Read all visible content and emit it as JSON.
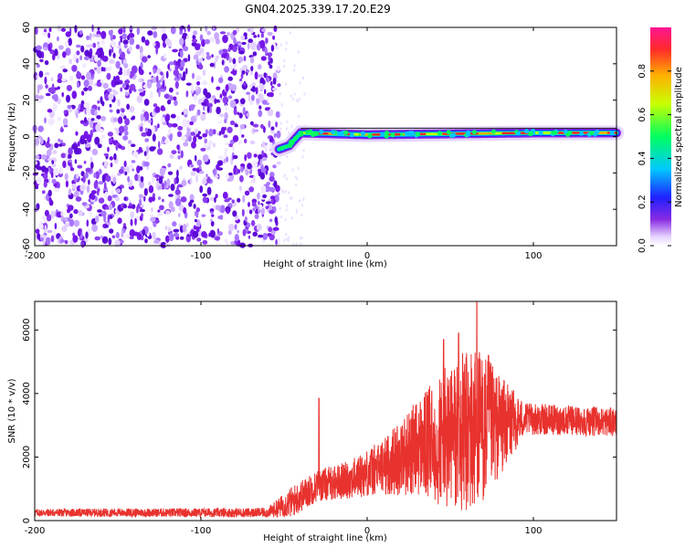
{
  "title": "GN04.2025.339.17.20.E29",
  "chart_data": [
    {
      "type": "heatmap",
      "name": "spectrogram",
      "xlabel": "Height of straight line (km)",
      "ylabel": "Frequency (Hz)",
      "xlim": [
        -200,
        150
      ],
      "ylim": [
        -60,
        60
      ],
      "xticks": [
        -200,
        -100,
        0,
        100
      ],
      "yticks": [
        -60,
        -40,
        -20,
        0,
        20,
        40,
        60
      ],
      "noise_region_x": [
        -200,
        -53
      ],
      "signal_track": {
        "description": "narrow band near 0-2 Hz",
        "points": [
          {
            "x": -53,
            "y": -7
          },
          {
            "x": -47,
            "y": -5
          },
          {
            "x": -44,
            "y": -2
          },
          {
            "x": -40,
            "y": 2
          },
          {
            "x": 0,
            "y": 1
          },
          {
            "x": 50,
            "y": 1.5
          },
          {
            "x": 100,
            "y": 2
          },
          {
            "x": 150,
            "y": 2
          }
        ]
      },
      "colorbar": {
        "label": "Normalized spectral amplitude",
        "ticks": [
          "0.0",
          "0.2",
          "0.4",
          "0.6",
          "0.8"
        ],
        "range": [
          0,
          1
        ]
      }
    },
    {
      "type": "line",
      "name": "snr",
      "xlabel": "Height of straight line (km)",
      "ylabel": "SNR (10 * v/v)",
      "xlim": [
        -200,
        150
      ],
      "ylim": [
        0,
        6900
      ],
      "xticks": [
        -200,
        -100,
        0,
        100
      ],
      "yticks": [
        0,
        2000,
        4000,
        6000
      ],
      "series": [
        {
          "name": "SNR",
          "color": "#e8322e",
          "envelope": [
            {
              "x": -200,
              "base": 250,
              "amp": 120
            },
            {
              "x": -60,
              "base": 250,
              "amp": 150
            },
            {
              "x": -45,
              "base": 600,
              "amp": 500
            },
            {
              "x": -30,
              "base": 1100,
              "amp": 500
            },
            {
              "x": -10,
              "base": 1300,
              "amp": 600
            },
            {
              "x": 10,
              "base": 1700,
              "amp": 900
            },
            {
              "x": 30,
              "base": 2300,
              "amp": 1500
            },
            {
              "x": 50,
              "base": 2600,
              "amp": 2400
            },
            {
              "x": 65,
              "base": 2800,
              "amp": 2800
            },
            {
              "x": 80,
              "base": 3000,
              "amp": 1600
            },
            {
              "x": 95,
              "base": 3200,
              "amp": 500
            },
            {
              "x": 150,
              "base": 3100,
              "amp": 450
            }
          ],
          "spikes": [
            {
              "x": -29,
              "y": 3850
            },
            {
              "x": 46,
              "y": 5700
            },
            {
              "x": 55,
              "y": 5900
            },
            {
              "x": 66,
              "y": 6900
            },
            {
              "x": 73,
              "y": 5200
            }
          ]
        }
      ]
    }
  ]
}
